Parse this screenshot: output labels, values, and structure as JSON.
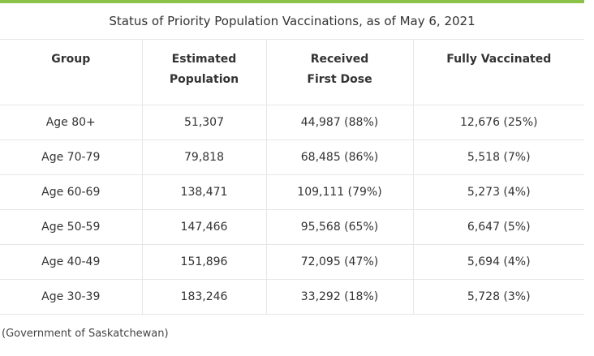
{
  "table": {
    "title": "Status of Priority Population Vaccinations, as of May 6, 2021",
    "headers": {
      "group": "Group",
      "estimated_line1": "Estimated",
      "estimated_line2": "Population",
      "received_line1": "Received",
      "received_line2": "First Dose",
      "fully": "Fully Vaccinated"
    },
    "rows": [
      {
        "group": "Age 80+",
        "population": "51,307",
        "first_dose": "44,987 (88%)",
        "fully": "12,676 (25%)"
      },
      {
        "group": "Age 70-79",
        "population": "79,818",
        "first_dose": "68,485 (86%)",
        "fully": "5,518 (7%)"
      },
      {
        "group": "Age 60-69",
        "population": "138,471",
        "first_dose": "109,111 (79%)",
        "fully": "5,273 (4%)"
      },
      {
        "group": "Age 50-59",
        "population": "147,466",
        "first_dose": "95,568 (65%)",
        "fully": "6,647 (5%)"
      },
      {
        "group": "Age 40-49",
        "population": "151,896",
        "first_dose": "72,095 (47%)",
        "fully": "5,694 (4%)"
      },
      {
        "group": "Age 30-39",
        "population": "183,246",
        "first_dose": "33,292 (18%)",
        "fully": "5,728 (3%)"
      }
    ]
  },
  "source": "(Government of Saskatchewan)",
  "colors": {
    "accent_bar": "#8bc34a",
    "border": "#e6e6e6",
    "text": "#333333"
  }
}
